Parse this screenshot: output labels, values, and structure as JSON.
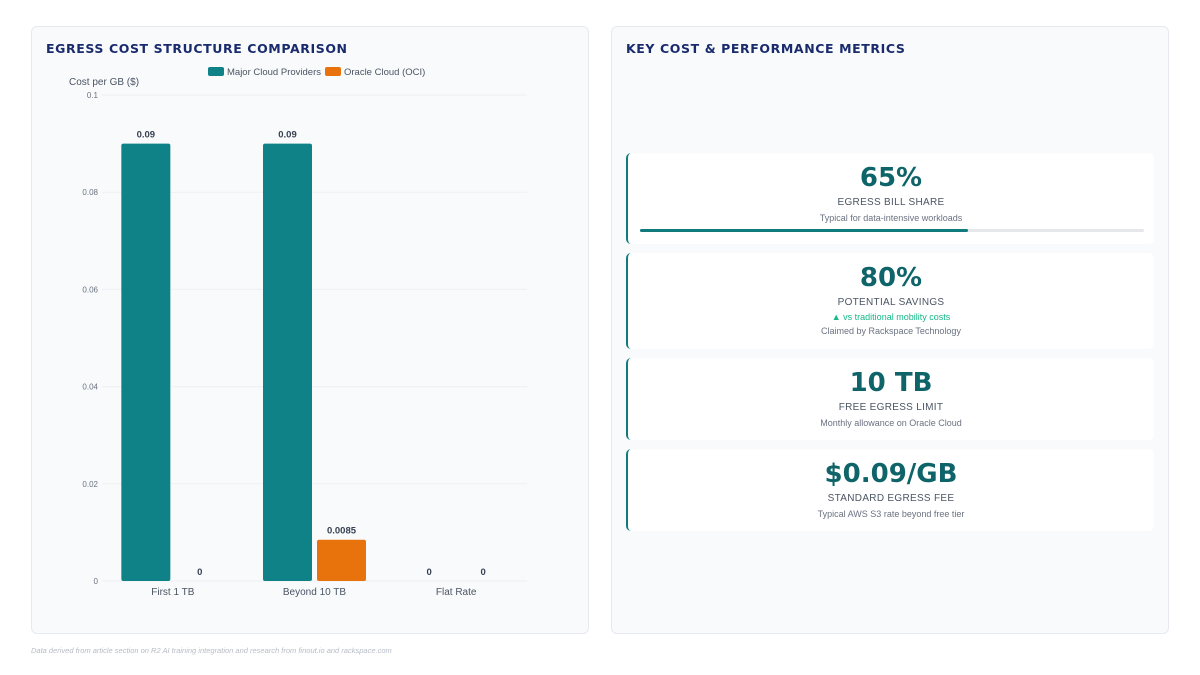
{
  "chart_panel": {
    "title": "EGRESS COST STRUCTURE COMPARISON"
  },
  "metrics_panel": {
    "title": "KEY COST & PERFORMANCE METRICS"
  },
  "chart_data": {
    "type": "bar",
    "ylabel": "Cost per GB ($)",
    "xlabel": "",
    "categories": [
      "First 1 TB",
      "Beyond 10 TB",
      "Flat Rate"
    ],
    "series": [
      {
        "name": "Major Cloud Providers",
        "color": "#0e8286",
        "values": [
          0.09,
          0.09,
          0
        ],
        "labels": [
          "0.09",
          "0.09",
          "0"
        ]
      },
      {
        "name": "Oracle Cloud (OCI)",
        "color": "#e8720c",
        "values": [
          0,
          0.0085,
          0
        ],
        "labels": [
          "0",
          "0.0085",
          "0"
        ]
      }
    ],
    "ylim": [
      0,
      0.1
    ],
    "yticks": [
      0,
      0.02,
      0.04,
      0.06,
      0.08,
      0.1
    ],
    "ytick_labels": [
      "0",
      "0.02",
      "0.04",
      "0.06",
      "0.08",
      "0.1"
    ],
    "grid": true,
    "legend_position": "top"
  },
  "metrics": [
    {
      "value": "65%",
      "label": "EGRESS BILL SHARE",
      "sub": "Typical for data-intensive workloads",
      "progress": 0.65
    },
    {
      "value": "80%",
      "label": "POTENTIAL SAVINGS",
      "trend": "▲ vs traditional mobility costs",
      "sub": "Claimed by Rackspace Technology"
    },
    {
      "value": "10 TB",
      "label": "FREE EGRESS LIMIT",
      "sub": "Monthly allowance on Oracle Cloud"
    },
    {
      "value": "$0.09/GB",
      "label": "STANDARD EGRESS FEE",
      "sub": "Typical AWS S3 rate beyond free tier"
    }
  ],
  "footnote": "Data derived from article section on R2 AI training integration and research from finout.io and rackspace.com"
}
